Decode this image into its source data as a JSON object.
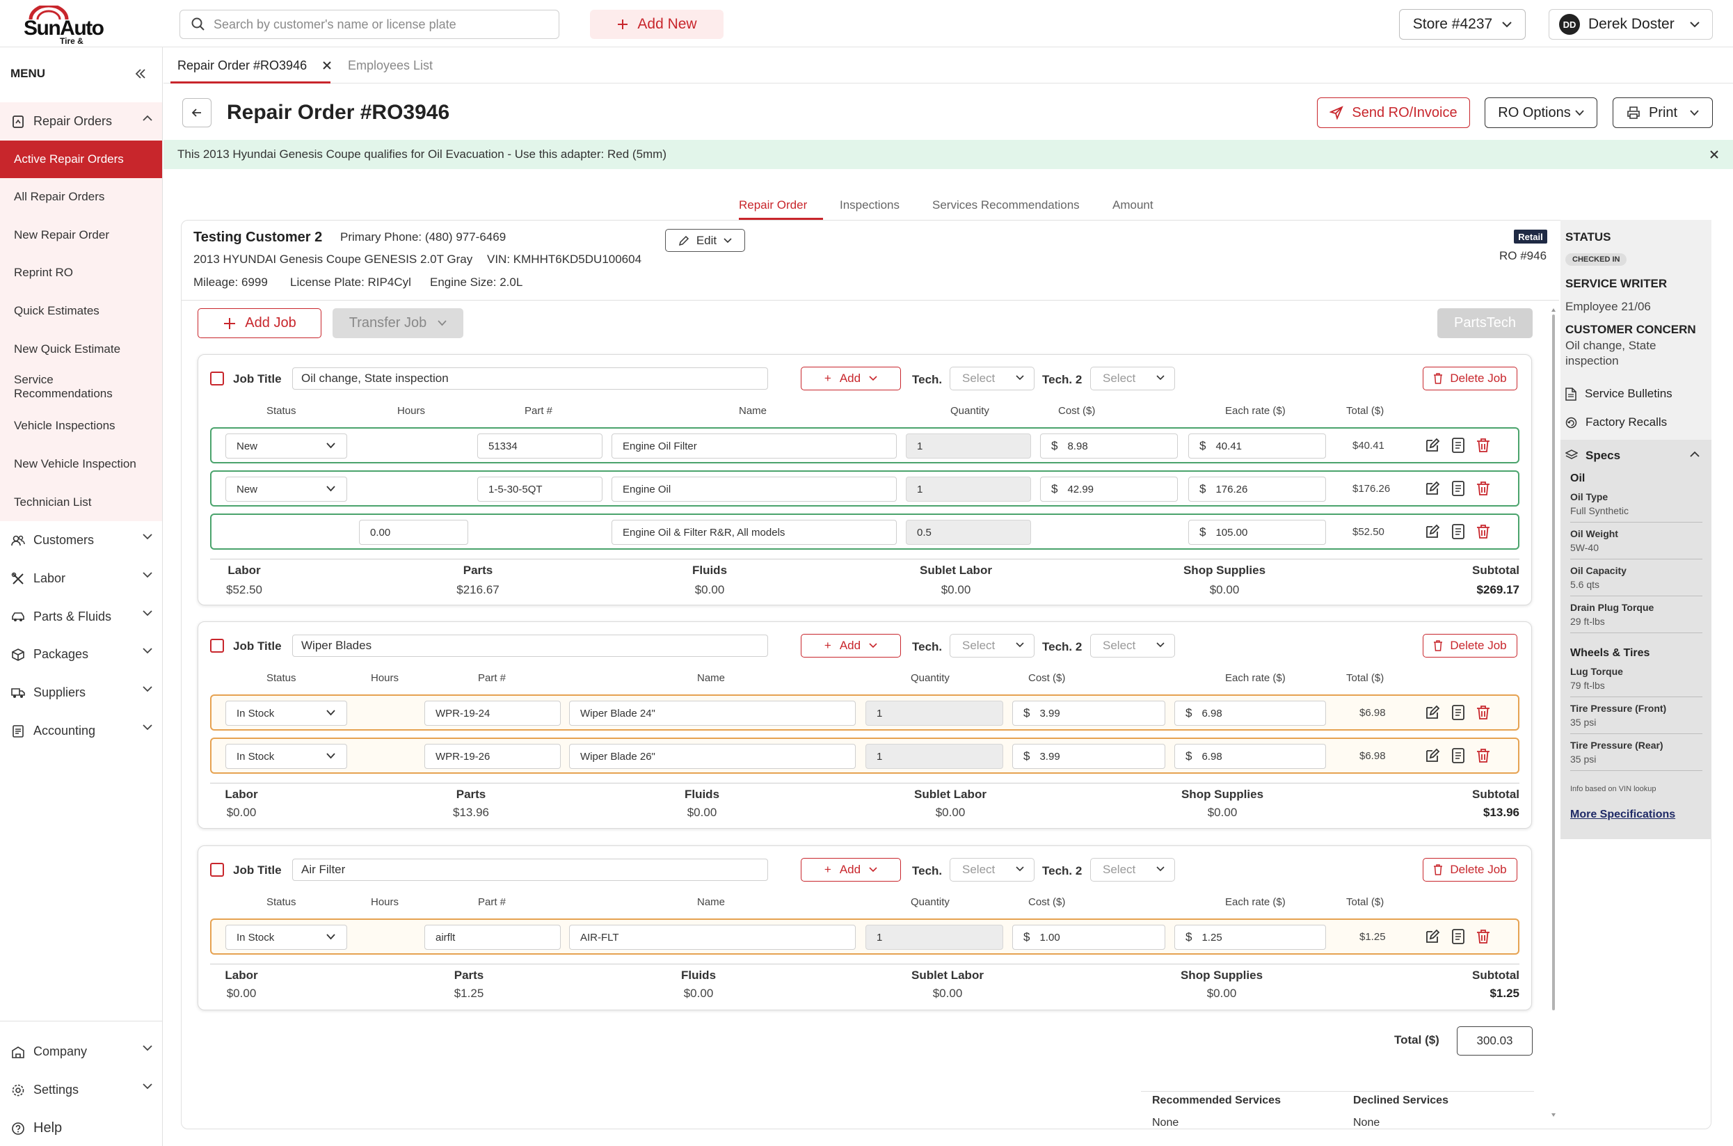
{
  "app": {
    "brand": "SunAuto",
    "brand_sub": "Tire & Service"
  },
  "topbar": {
    "search_placeholder": "Search by customer's name or license plate",
    "add_new": "Add New",
    "store": "Store #4237",
    "user_initials": "DD",
    "user_name": "Derek Doster"
  },
  "sidebar": {
    "menu_label": "MENU",
    "repair_orders": "Repair Orders",
    "sub_items": [
      "Active Repair Orders",
      "All Repair Orders",
      "New Repair Order",
      "Reprint RO",
      "Quick Estimates",
      "New Quick Estimate",
      "Service Recommendations",
      "Vehicle Inspections",
      "New Vehicle Inspection",
      "Technician List"
    ],
    "groups": [
      "Customers",
      "Labor",
      "Parts & Fluids",
      "Packages",
      "Suppliers",
      "Accounting"
    ],
    "bottom": [
      "Company",
      "Settings",
      "Help"
    ]
  },
  "doc_tabs": [
    "Repair Order #RO3946",
    "Employees List"
  ],
  "header": {
    "title": "Repair Order #RO3946",
    "send": "Send RO/Invoice",
    "options": "RO Options",
    "print": "Print"
  },
  "banner": "This 2013 Hyundai Genesis Coupe qualifies for Oil Evacuation - Use this adapter: Red (5mm)",
  "sub_tabs": [
    "Repair Order",
    "Inspections",
    "Services Recommendations",
    "Amount"
  ],
  "customer": {
    "name": "Testing Customer 2",
    "phone_label": "Primary Phone:",
    "phone": "(480) 977-6469",
    "vehicle": "2013 HYUNDAI Genesis Coupe GENESIS 2.0T Gray",
    "vin_label": "VIN:",
    "vin": "KMHHT6KD5DU100604",
    "mileage_label": "Mileage:",
    "mileage": "6999",
    "plate_label": "License Plate:",
    "plate": "RIP4Cyl",
    "engine_label": "Engine Size:",
    "engine": "2.0L",
    "edit": "Edit",
    "badge": "Retail",
    "ro_number": "RO #946"
  },
  "actions": {
    "add_job": "Add Job",
    "transfer_job": "Transfer Job",
    "partstech": "PartsTech"
  },
  "job_labels": {
    "job_title": "Job Title",
    "add": "Add",
    "tech": "Tech.",
    "tech2": "Tech. 2",
    "select": "Select",
    "delete": "Delete Job"
  },
  "columns": [
    "Status",
    "Hours",
    "Part #",
    "Name",
    "Quantity",
    "Cost ($)",
    "Each rate ($)",
    "Total ($)"
  ],
  "summary_labels": [
    "Labor",
    "Parts",
    "Fluids",
    "Sublet Labor",
    "Shop Supplies",
    "Subtotal"
  ],
  "jobs": [
    {
      "title": "Oil change,  State inspection",
      "rows": [
        {
          "status": "New",
          "hours": "",
          "part": "51334",
          "name": "Engine Oil Filter",
          "qty": "1",
          "cost": "8.98",
          "rate": "40.41",
          "total": "$40.41"
        },
        {
          "status": "New",
          "hours": "",
          "part": "1-5-30-5QT",
          "name": "Engine Oil",
          "qty": "1",
          "cost": "42.99",
          "rate": "176.26",
          "total": "$176.26"
        },
        {
          "status": "",
          "hours": "0.00",
          "part": "",
          "name": "Engine Oil & Filter R&R, All models",
          "qty": "0.5",
          "cost": "",
          "rate": "105.00",
          "total": "$52.50"
        }
      ],
      "summary": [
        "$52.50",
        "$216.67",
        "$0.00",
        "$0.00",
        "$0.00",
        "$269.17"
      ]
    },
    {
      "title": "Wiper Blades",
      "rows": [
        {
          "status": "In Stock",
          "hours": "",
          "part": "WPR-19-24",
          "name": "Wiper Blade 24\"",
          "qty": "1",
          "cost": "3.99",
          "rate": "6.98",
          "total": "$6.98"
        },
        {
          "status": "In Stock",
          "hours": "",
          "part": "WPR-19-26",
          "name": "Wiper Blade 26\"",
          "qty": "1",
          "cost": "3.99",
          "rate": "6.98",
          "total": "$6.98"
        }
      ],
      "summary": [
        "$0.00",
        "$13.96",
        "$0.00",
        "$0.00",
        "$0.00",
        "$13.96"
      ]
    },
    {
      "title": "Air Filter",
      "rows": [
        {
          "status": "In Stock",
          "hours": "",
          "part": "airflt",
          "name": "AIR-FLT",
          "qty": "1",
          "cost": "1.00",
          "rate": "1.25",
          "total": "$1.25"
        }
      ],
      "summary": [
        "$0.00",
        "$1.25",
        "$0.00",
        "$0.00",
        "$0.00",
        "$1.25"
      ]
    }
  ],
  "total": {
    "label": "Total ($)",
    "value": "300.03"
  },
  "services": {
    "recommended_label": "Recommended Services",
    "recommended": "None",
    "declined_label": "Declined Services",
    "declined": "None"
  },
  "right_panel": {
    "status_h": "STATUS",
    "status": "CHECKED IN",
    "writer_h": "SERVICE WRITER",
    "writer": "Employee 21/06",
    "concern_h": "CUSTOMER CONCERN",
    "concern": "Oil change, State inspection",
    "bulletins": "Service Bulletins",
    "recalls": "Factory Recalls",
    "specs": "Specs",
    "oil_h": "Oil",
    "oil": [
      {
        "label": "Oil Type",
        "value": "Full Synthetic"
      },
      {
        "label": "Oil Weight",
        "value": "5W-40"
      },
      {
        "label": "Oil Capacity",
        "value": "5.6 qts"
      },
      {
        "label": "Drain Plug Torque",
        "value": "29 ft-lbs"
      }
    ],
    "wheels_h": "Wheels & Tires",
    "wheels": [
      {
        "label": "Lug Torque",
        "value": "79 ft-lbs"
      },
      {
        "label": "Tire Pressure (Front)",
        "value": "35 psi"
      },
      {
        "label": "Tire Pressure (Rear)",
        "value": "35 psi"
      }
    ],
    "note": "Info based on VIN lookup",
    "more": "More Specifications"
  },
  "colors": {
    "brand_red": "#c8262c",
    "green_row": "#4aa36c",
    "orange_row": "#e6a251",
    "banner_bg": "#e2f5ea"
  }
}
